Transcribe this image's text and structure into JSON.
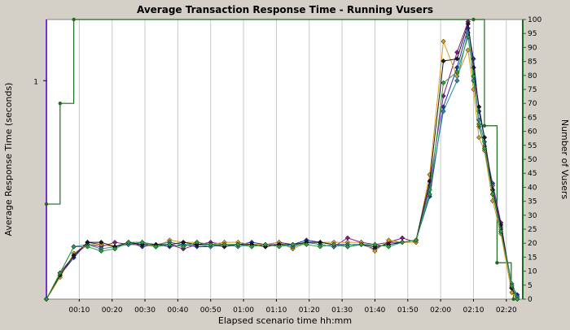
{
  "chart_data": {
    "type": "line",
    "title": "Average Transaction Response Time - Running Vusers",
    "xlabel": "Elapsed scenario time hh:mm",
    "ylabel_left": "Average Response Time (seconds)",
    "ylabel_right": "Number of Vusers",
    "x_unit": "seconds",
    "xlim": [
      0,
      870
    ],
    "x_ticks": [
      {
        "v": 60,
        "label": "00:10"
      },
      {
        "v": 120,
        "label": "00:20"
      },
      {
        "v": 180,
        "label": "00:30"
      },
      {
        "v": 240,
        "label": "00:40"
      },
      {
        "v": 300,
        "label": "00:50"
      },
      {
        "v": 360,
        "label": "01:00"
      },
      {
        "v": 420,
        "label": "01:10"
      },
      {
        "v": 480,
        "label": "01:20"
      },
      {
        "v": 540,
        "label": "01:30"
      },
      {
        "v": 600,
        "label": "01:40"
      },
      {
        "v": 660,
        "label": "01:50"
      },
      {
        "v": 720,
        "label": "02:00"
      },
      {
        "v": 780,
        "label": "02:10"
      },
      {
        "v": 840,
        "label": "02:20"
      }
    ],
    "y_left": {
      "ylim": [
        0,
        1.28
      ],
      "ticks": [
        {
          "v": 1,
          "label": "1"
        }
      ]
    },
    "y_right": {
      "ylim": [
        0,
        100
      ],
      "ticks": [
        0,
        5,
        10,
        15,
        20,
        25,
        30,
        35,
        40,
        45,
        50,
        55,
        60,
        65,
        70,
        75,
        80,
        85,
        90,
        95,
        100
      ]
    },
    "grid": true,
    "legend": "none",
    "colors": {
      "background": "#d4d0c8",
      "plot_background": "#ffffff",
      "grid": "#c8c8c8",
      "left_axis": "#7b2fd8",
      "right_axis": "#1f6b1f"
    },
    "vusers": {
      "color": "#1f6b1f",
      "axis": "right",
      "step": true,
      "points": [
        [
          0,
          34
        ],
        [
          25,
          70
        ],
        [
          50,
          100
        ],
        [
          780,
          100
        ],
        [
          800,
          62
        ],
        [
          823,
          13
        ],
        [
          849,
          4
        ],
        [
          853,
          0
        ]
      ]
    },
    "series": [
      {
        "color": "#1a2fb0",
        "axis": "left",
        "markers": true,
        "values": [
          [
            0,
            0
          ],
          [
            25,
            0.11
          ],
          [
            50,
            0.19
          ],
          [
            75,
            0.26
          ],
          [
            100,
            0.25
          ],
          [
            125,
            0.24
          ],
          [
            150,
            0.26
          ],
          [
            175,
            0.24
          ],
          [
            200,
            0.25
          ],
          [
            225,
            0.24
          ],
          [
            250,
            0.25
          ],
          [
            275,
            0.24
          ],
          [
            300,
            0.24
          ],
          [
            325,
            0.25
          ],
          [
            350,
            0.25
          ],
          [
            375,
            0.26
          ],
          [
            400,
            0.25
          ],
          [
            425,
            0.26
          ],
          [
            450,
            0.25
          ],
          [
            475,
            0.27
          ],
          [
            500,
            0.26
          ],
          [
            525,
            0.25
          ],
          [
            550,
            0.25
          ],
          [
            575,
            0.25
          ],
          [
            600,
            0.23
          ],
          [
            625,
            0.26
          ],
          [
            650,
            0.26
          ],
          [
            675,
            0.27
          ],
          [
            700,
            0.47
          ],
          [
            725,
            0.88
          ],
          [
            750,
            1.06
          ],
          [
            770,
            1.24
          ],
          [
            780,
            1.1
          ],
          [
            790,
            0.86
          ],
          [
            800,
            0.74
          ],
          [
            815,
            0.48
          ],
          [
            830,
            0.32
          ],
          [
            850,
            0.06
          ],
          [
            860,
            0.02
          ]
        ]
      },
      {
        "color": "#8a1a8a",
        "axis": "left",
        "markers": true,
        "values": [
          [
            0,
            0
          ],
          [
            25,
            0.12
          ],
          [
            50,
            0.2
          ],
          [
            75,
            0.25
          ],
          [
            100,
            0.24
          ],
          [
            125,
            0.26
          ],
          [
            150,
            0.25
          ],
          [
            175,
            0.25
          ],
          [
            200,
            0.24
          ],
          [
            225,
            0.25
          ],
          [
            250,
            0.23
          ],
          [
            275,
            0.25
          ],
          [
            300,
            0.26
          ],
          [
            325,
            0.25
          ],
          [
            350,
            0.25
          ],
          [
            375,
            0.25
          ],
          [
            400,
            0.25
          ],
          [
            425,
            0.25
          ],
          [
            450,
            0.24
          ],
          [
            475,
            0.26
          ],
          [
            500,
            0.25
          ],
          [
            525,
            0.24
          ],
          [
            550,
            0.28
          ],
          [
            575,
            0.26
          ],
          [
            600,
            0.25
          ],
          [
            625,
            0.26
          ],
          [
            650,
            0.28
          ],
          [
            675,
            0.26
          ],
          [
            700,
            0.52
          ],
          [
            725,
            0.93
          ],
          [
            750,
            1.13
          ],
          [
            770,
            1.27
          ],
          [
            780,
            1.06
          ],
          [
            790,
            0.79
          ],
          [
            800,
            0.7
          ],
          [
            815,
            0.53
          ],
          [
            830,
            0.35
          ],
          [
            850,
            0.05
          ],
          [
            860,
            0.01
          ]
        ]
      },
      {
        "color": "#d89a1a",
        "axis": "left",
        "markers": true,
        "values": [
          [
            0,
            0
          ],
          [
            25,
            0.1
          ],
          [
            50,
            0.21
          ],
          [
            75,
            0.25
          ],
          [
            100,
            0.25
          ],
          [
            125,
            0.24
          ],
          [
            150,
            0.26
          ],
          [
            175,
            0.25
          ],
          [
            200,
            0.24
          ],
          [
            225,
            0.27
          ],
          [
            250,
            0.26
          ],
          [
            275,
            0.26
          ],
          [
            300,
            0.25
          ],
          [
            325,
            0.26
          ],
          [
            350,
            0.26
          ],
          [
            375,
            0.25
          ],
          [
            400,
            0.25
          ],
          [
            425,
            0.26
          ],
          [
            450,
            0.23
          ],
          [
            475,
            0.26
          ],
          [
            500,
            0.26
          ],
          [
            525,
            0.26
          ],
          [
            550,
            0.26
          ],
          [
            575,
            0.26
          ],
          [
            600,
            0.22
          ],
          [
            625,
            0.27
          ],
          [
            650,
            0.26
          ],
          [
            675,
            0.26
          ],
          [
            700,
            0.57
          ],
          [
            725,
            1.18
          ],
          [
            750,
            1.02
          ],
          [
            770,
            1.14
          ],
          [
            780,
            0.96
          ],
          [
            790,
            0.74
          ],
          [
            800,
            0.68
          ],
          [
            815,
            0.45
          ],
          [
            830,
            0.3
          ],
          [
            850,
            0.03
          ],
          [
            860,
            0
          ]
        ]
      },
      {
        "color": "#2a8aa8",
        "axis": "left",
        "markers": true,
        "values": [
          [
            0,
            0
          ],
          [
            25,
            0.12
          ],
          [
            50,
            0.24
          ],
          [
            75,
            0.25
          ],
          [
            100,
            0.23
          ],
          [
            125,
            0.24
          ],
          [
            150,
            0.25
          ],
          [
            175,
            0.26
          ],
          [
            200,
            0.25
          ],
          [
            225,
            0.26
          ],
          [
            250,
            0.25
          ],
          [
            275,
            0.25
          ],
          [
            300,
            0.24
          ],
          [
            325,
            0.25
          ],
          [
            350,
            0.24
          ],
          [
            375,
            0.25
          ],
          [
            400,
            0.24
          ],
          [
            425,
            0.25
          ],
          [
            450,
            0.24
          ],
          [
            475,
            0.26
          ],
          [
            500,
            0.25
          ],
          [
            525,
            0.24
          ],
          [
            550,
            0.25
          ],
          [
            575,
            0.25
          ],
          [
            600,
            0.24
          ],
          [
            625,
            0.25
          ],
          [
            650,
            0.26
          ],
          [
            675,
            0.27
          ],
          [
            700,
            0.5
          ],
          [
            725,
            0.86
          ],
          [
            750,
            1.0
          ],
          [
            770,
            1.22
          ],
          [
            780,
            1.0
          ],
          [
            790,
            0.82
          ],
          [
            800,
            0.72
          ],
          [
            815,
            0.52
          ],
          [
            830,
            0.33
          ],
          [
            850,
            0.07
          ],
          [
            860,
            0.01
          ]
        ]
      },
      {
        "color": "#1a1a1a",
        "axis": "left",
        "markers": true,
        "values": [
          [
            0,
            0
          ],
          [
            25,
            0.11
          ],
          [
            50,
            0.2
          ],
          [
            75,
            0.26
          ],
          [
            100,
            0.26
          ],
          [
            125,
            0.24
          ],
          [
            150,
            0.26
          ],
          [
            175,
            0.25
          ],
          [
            200,
            0.25
          ],
          [
            225,
            0.25
          ],
          [
            250,
            0.26
          ],
          [
            275,
            0.25
          ],
          [
            300,
            0.25
          ],
          [
            325,
            0.24
          ],
          [
            350,
            0.25
          ],
          [
            375,
            0.25
          ],
          [
            400,
            0.24
          ],
          [
            425,
            0.25
          ],
          [
            450,
            0.25
          ],
          [
            475,
            0.26
          ],
          [
            500,
            0.26
          ],
          [
            525,
            0.25
          ],
          [
            550,
            0.24
          ],
          [
            575,
            0.25
          ],
          [
            600,
            0.24
          ],
          [
            625,
            0.25
          ],
          [
            650,
            0.26
          ],
          [
            675,
            0.27
          ],
          [
            700,
            0.54
          ],
          [
            725,
            1.09
          ],
          [
            750,
            1.1
          ],
          [
            770,
            1.26
          ],
          [
            780,
            1.06
          ],
          [
            790,
            0.88
          ],
          [
            800,
            0.74
          ],
          [
            815,
            0.5
          ],
          [
            830,
            0.34
          ],
          [
            850,
            0.05
          ],
          [
            860,
            0
          ]
        ]
      },
      {
        "color": "#2aa03a",
        "axis": "left",
        "markers": true,
        "values": [
          [
            0,
            0
          ],
          [
            25,
            0.12
          ],
          [
            50,
            0.24
          ],
          [
            75,
            0.24
          ],
          [
            100,
            0.22
          ],
          [
            125,
            0.23
          ],
          [
            150,
            0.26
          ],
          [
            175,
            0.26
          ],
          [
            200,
            0.24
          ],
          [
            225,
            0.25
          ],
          [
            250,
            0.24
          ],
          [
            275,
            0.26
          ],
          [
            300,
            0.25
          ],
          [
            325,
            0.25
          ],
          [
            350,
            0.25
          ],
          [
            375,
            0.24
          ],
          [
            400,
            0.25
          ],
          [
            425,
            0.24
          ],
          [
            450,
            0.25
          ],
          [
            475,
            0.25
          ],
          [
            500,
            0.24
          ],
          [
            525,
            0.25
          ],
          [
            550,
            0.24
          ],
          [
            575,
            0.25
          ],
          [
            600,
            0.25
          ],
          [
            625,
            0.24
          ],
          [
            650,
            0.26
          ],
          [
            675,
            0.27
          ],
          [
            700,
            0.48
          ],
          [
            725,
            0.99
          ],
          [
            750,
            1.04
          ],
          [
            770,
            1.2
          ],
          [
            780,
            1.02
          ],
          [
            790,
            0.8
          ],
          [
            800,
            0.69
          ],
          [
            815,
            0.48
          ],
          [
            830,
            0.31
          ],
          [
            850,
            0.06
          ],
          [
            860,
            0
          ]
        ]
      }
    ]
  }
}
